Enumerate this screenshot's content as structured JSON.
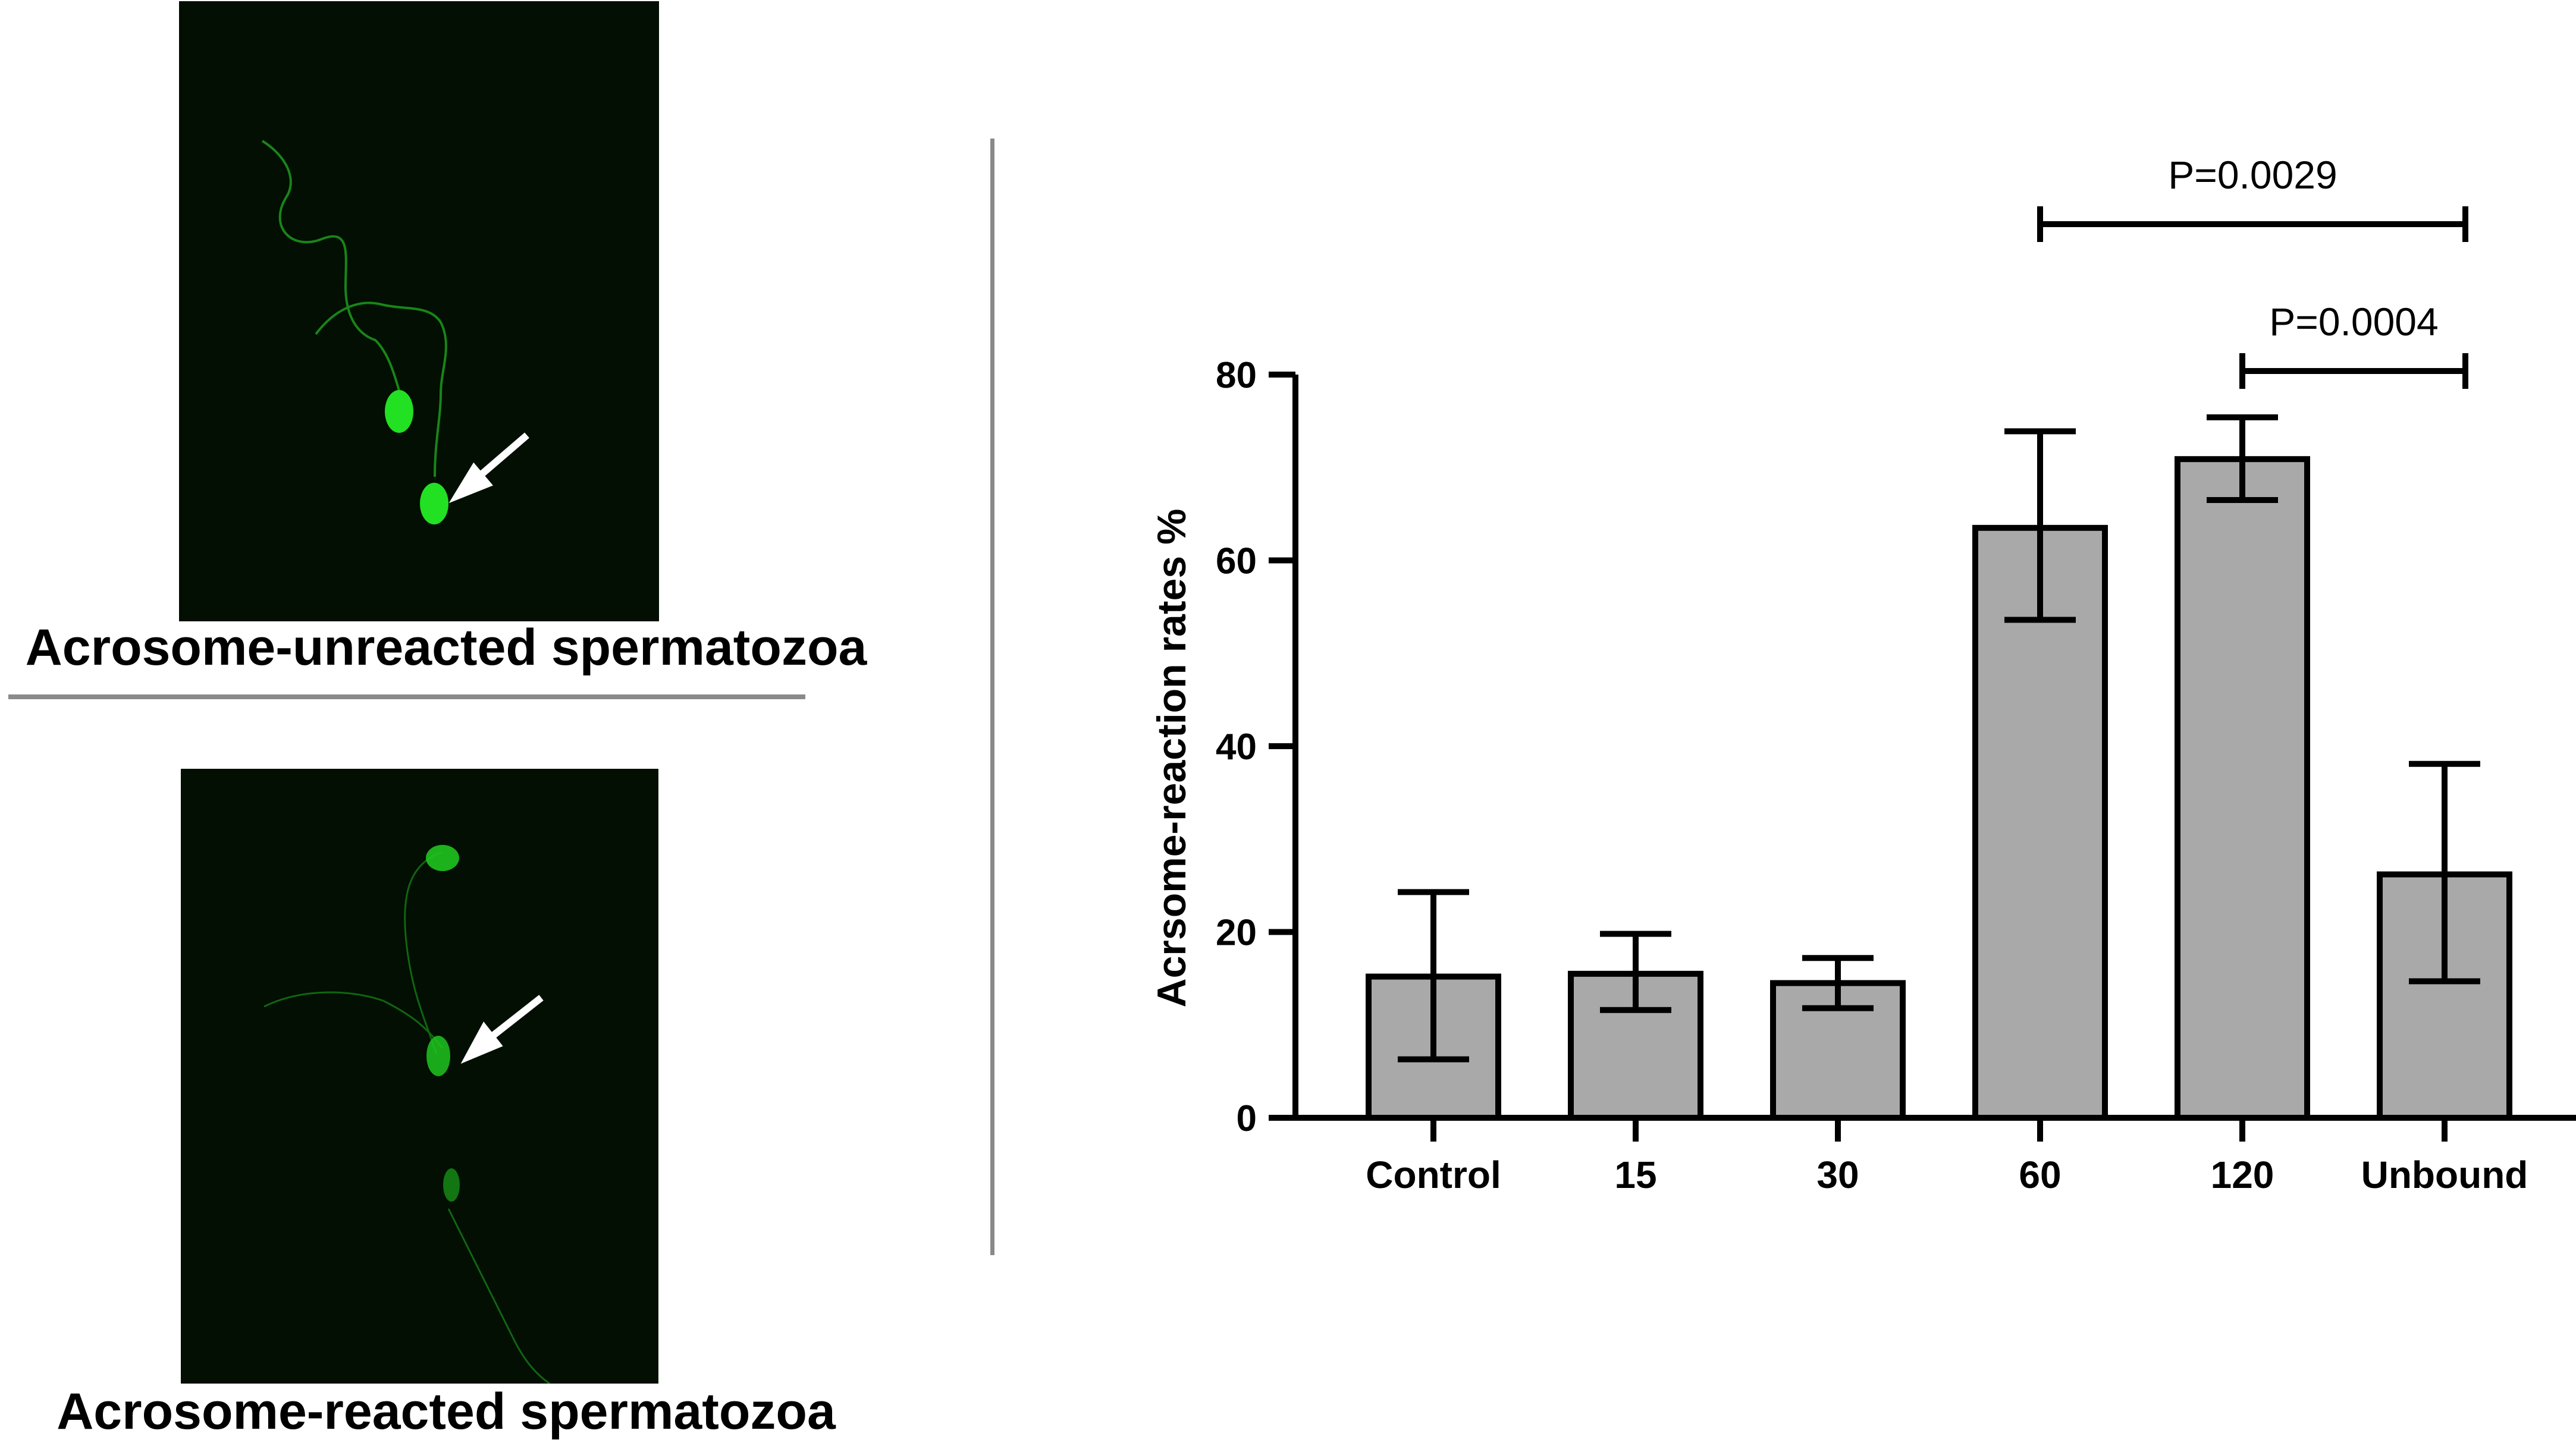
{
  "panels": {
    "top_caption": "Acrosome-unreacted spermatozoa",
    "bottom_caption": "Acrosome-reacted spermatozoa",
    "fluorescence_color": "#22e022",
    "background_color": "#020f02"
  },
  "chart_data": {
    "type": "bar",
    "categories": [
      "Control",
      "15",
      "30",
      "60",
      "120",
      "Unbound"
    ],
    "values": [
      15.2,
      15.5,
      14.5,
      63.5,
      70.9,
      26.2
    ],
    "error_low": [
      6.3,
      11.6,
      11.8,
      53.6,
      66.5,
      14.7
    ],
    "error_high": [
      24.3,
      19.8,
      17.2,
      73.9,
      75.4,
      38.1
    ],
    "ylabel": "Acrsome-reaction rates %",
    "xlabel": "",
    "ylim": [
      0,
      80
    ],
    "yticks": [
      0,
      20,
      40,
      60,
      80
    ],
    "bar_color": "#a9a9a9",
    "significance": [
      {
        "from": "60",
        "to": "Unbound",
        "label": "P=0.0029"
      },
      {
        "from": "120",
        "to": "Unbound",
        "label": "P=0.0004"
      }
    ]
  }
}
